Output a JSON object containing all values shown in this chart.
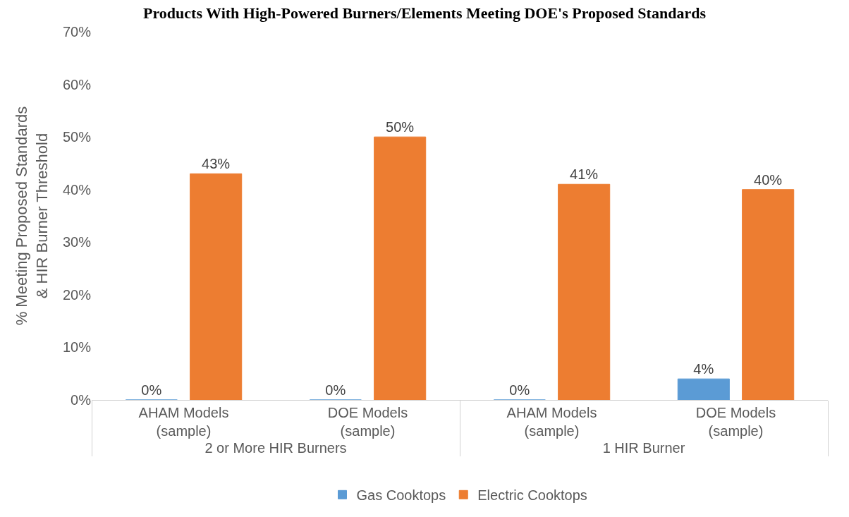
{
  "chart_data": {
    "type": "bar",
    "title": "Products With High-Powered Burners/Elements Meeting DOE's Proposed Standards",
    "ylabel": "% Meeting Proposed Standards & HIR Burner Threshold",
    "categories": [
      "AHAM Models (sample)",
      "DOE Models (sample)",
      "AHAM Models (sample)",
      "DOE Models (sample)"
    ],
    "annotations": [
      "2 or More HIR Burners",
      "1 HIR Burner"
    ],
    "series": [
      {
        "name": "Gas Cooktops",
        "color": "#5b9bd5",
        "values": [
          0,
          0,
          0,
          4
        ],
        "value_labels": [
          "0%",
          "0%",
          "0%",
          "4%"
        ]
      },
      {
        "name": "Electric Cooktops",
        "color": "#ed7d31",
        "values": [
          43,
          50,
          41,
          40
        ],
        "value_labels": [
          "43%",
          "50%",
          "41%",
          "40%"
        ]
      }
    ],
    "ylim": [
      0,
      70
    ],
    "yticks": [
      {
        "value": 0,
        "label": "0%"
      },
      {
        "value": 10,
        "label": "10%"
      },
      {
        "value": 20,
        "label": "20%"
      },
      {
        "value": 30,
        "label": "30%"
      },
      {
        "value": 40,
        "label": "40%"
      },
      {
        "value": 50,
        "label": "50%"
      },
      {
        "value": 60,
        "label": "60%"
      },
      {
        "value": 70,
        "label": "70%"
      }
    ],
    "grid": false,
    "legend": "bottom"
  }
}
